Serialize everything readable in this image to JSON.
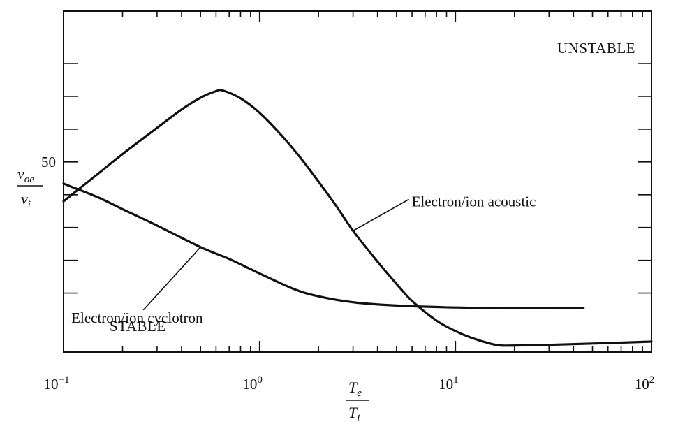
{
  "chart_data": {
    "type": "line",
    "xscale": "log",
    "xlim": [
      0.1,
      100
    ],
    "ylim": [
      21,
      73
    ],
    "xticks": [
      {
        "value": 0.1,
        "base": "10",
        "exp": "−1"
      },
      {
        "value": 1,
        "base": "10",
        "exp": "0"
      },
      {
        "value": 10,
        "base": "10",
        "exp": "1"
      },
      {
        "value": 100,
        "base": "10",
        "exp": "2"
      }
    ],
    "yticks_major": [
      {
        "value": 50,
        "label": "50"
      }
    ],
    "yticks_minor": [
      30,
      35,
      40,
      45,
      55,
      60,
      65
    ],
    "ylabel": {
      "top": "v",
      "top_sub": "oe",
      "bottom": "v",
      "bottom_sub": "i"
    },
    "xlabel": {
      "top": "T",
      "top_sub": "e",
      "bottom": "T",
      "bottom_sub": "i"
    },
    "regions": {
      "unstable": "UNSTABLE",
      "stable": "STABLE"
    },
    "series": [
      {
        "name": "Electron/ion acoustic",
        "x": [
          0.1,
          0.15,
          0.2,
          0.3,
          0.4,
          0.5,
          0.6,
          0.65,
          0.8,
          1.0,
          1.3,
          1.6,
          2.0,
          2.5,
          3.0,
          4.0,
          5.0,
          6.0,
          8.0,
          10.0,
          12.0,
          15.0,
          17.0,
          20.0,
          30.0,
          50.0,
          100.0
        ],
        "y": [
          44.0,
          48.2,
          51.2,
          55.2,
          58.0,
          59.8,
          60.8,
          60.9,
          59.7,
          57.5,
          54.0,
          50.8,
          47.0,
          43.0,
          39.5,
          34.8,
          31.4,
          28.8,
          25.8,
          24.2,
          23.2,
          22.3,
          22.0,
          22.0,
          22.1,
          22.3,
          22.6
        ]
      },
      {
        "name": "Electron/ion cyclotron",
        "x": [
          0.1,
          0.11,
          0.15,
          0.2,
          0.3,
          0.5,
          0.7,
          1.0,
          1.5,
          2.0,
          3.0,
          5.0,
          10.0,
          20.0,
          45.0
        ],
        "y": [
          46.7,
          46.2,
          44.6,
          42.8,
          40.3,
          37.0,
          35.2,
          33.0,
          30.6,
          29.5,
          28.6,
          28.1,
          27.8,
          27.7,
          27.7
        ]
      }
    ],
    "annotations": [
      {
        "text": "Electron/ion acoustic",
        "series": 0,
        "x": 3.0
      },
      {
        "text": "Electron/ion cyclotron",
        "series": 1,
        "x": 0.5
      }
    ]
  }
}
